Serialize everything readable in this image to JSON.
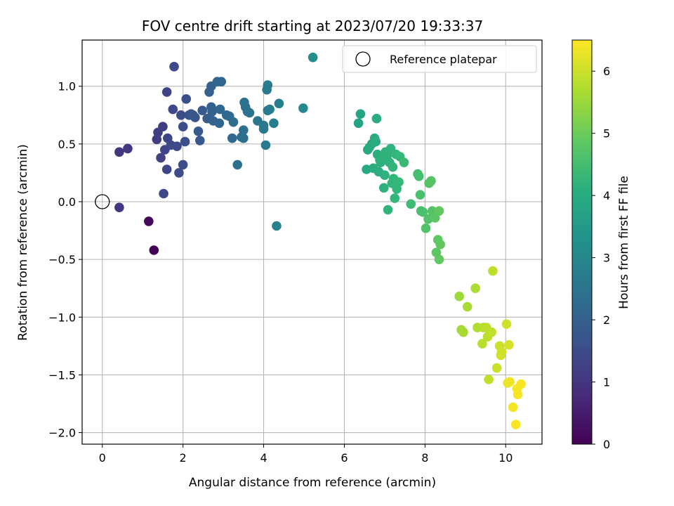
{
  "chart_data": {
    "type": "scatter",
    "title": "FOV centre drift starting at 2023/07/20 19:33:37",
    "xlabel": "Angular distance from reference (arcmin)",
    "ylabel": "Rotation from reference (arcmin)",
    "xlim": [
      -0.5,
      10.9
    ],
    "ylim": [
      -2.1,
      1.4
    ],
    "xticks": [
      "0",
      "2",
      "4",
      "6",
      "8",
      "10"
    ],
    "yticks": [
      "−2.0",
      "−1.5",
      "−1.0",
      "−0.5",
      "0.0",
      "0.5",
      "1.0"
    ],
    "grid": true,
    "colormap": "viridis",
    "colorbar": {
      "label": "Hours from first FF file",
      "range": [
        0,
        6.5
      ],
      "ticks": [
        "0",
        "1",
        "2",
        "3",
        "4",
        "5",
        "6"
      ]
    },
    "legend": {
      "position": "top-right",
      "entries": [
        "Reference platepar"
      ]
    },
    "reference_point": {
      "x": 0,
      "y": 0
    },
    "points": [
      [
        1.15,
        -0.17,
        0.15
      ],
      [
        1.28,
        -0.42,
        0.05
      ],
      [
        0.42,
        -0.05,
        1.05
      ],
      [
        0.42,
        0.43,
        1.0
      ],
      [
        0.63,
        0.46,
        1.05
      ],
      [
        1.35,
        0.54,
        1.15
      ],
      [
        1.38,
        0.6,
        1.2
      ],
      [
        1.45,
        0.38,
        1.25
      ],
      [
        1.5,
        0.65,
        1.2
      ],
      [
        1.52,
        0.07,
        1.35
      ],
      [
        1.55,
        0.45,
        1.3
      ],
      [
        1.6,
        0.28,
        1.35
      ],
      [
        1.6,
        0.95,
        1.3
      ],
      [
        1.62,
        0.55,
        1.35
      ],
      [
        1.7,
        0.49,
        1.4
      ],
      [
        1.75,
        0.8,
        1.4
      ],
      [
        1.78,
        1.17,
        1.45
      ],
      [
        1.85,
        0.48,
        1.45
      ],
      [
        1.9,
        0.25,
        1.5
      ],
      [
        1.95,
        0.75,
        1.5
      ],
      [
        2.0,
        0.65,
        1.55
      ],
      [
        2.0,
        0.32,
        1.55
      ],
      [
        2.05,
        0.52,
        1.6
      ],
      [
        2.08,
        0.89,
        1.6
      ],
      [
        2.15,
        0.75,
        1.65
      ],
      [
        2.2,
        0.76,
        1.7
      ],
      [
        2.25,
        0.75,
        1.75
      ],
      [
        2.3,
        0.73,
        1.75
      ],
      [
        2.38,
        0.61,
        1.8
      ],
      [
        2.42,
        0.53,
        1.8
      ],
      [
        2.48,
        0.79,
        1.85
      ],
      [
        2.6,
        0.72,
        1.9
      ],
      [
        2.65,
        0.95,
        1.95
      ],
      [
        2.7,
        1.0,
        2.0
      ],
      [
        2.7,
        0.82,
        2.0
      ],
      [
        2.72,
        0.78,
        2.0
      ],
      [
        2.75,
        0.7,
        2.05
      ],
      [
        2.85,
        1.04,
        2.1
      ],
      [
        2.9,
        0.68,
        2.1
      ],
      [
        2.92,
        0.8,
        2.15
      ],
      [
        2.95,
        1.04,
        2.15
      ],
      [
        3.08,
        0.75,
        2.2
      ],
      [
        3.15,
        0.74,
        2.25
      ],
      [
        3.22,
        0.55,
        2.25
      ],
      [
        3.25,
        0.69,
        2.3
      ],
      [
        3.35,
        0.32,
        2.35
      ],
      [
        3.45,
        0.56,
        2.35
      ],
      [
        3.5,
        0.55,
        2.4
      ],
      [
        3.5,
        0.62,
        2.4
      ],
      [
        3.52,
        0.86,
        2.45
      ],
      [
        3.55,
        0.82,
        2.45
      ],
      [
        3.6,
        0.78,
        2.5
      ],
      [
        3.65,
        0.77,
        2.5
      ],
      [
        3.85,
        0.7,
        2.55
      ],
      [
        4.0,
        0.66,
        2.6
      ],
      [
        4.0,
        0.63,
        2.6
      ],
      [
        4.05,
        0.49,
        2.65
      ],
      [
        4.08,
        0.97,
        2.65
      ],
      [
        4.1,
        1.01,
        2.7
      ],
      [
        4.1,
        0.79,
        2.7
      ],
      [
        4.15,
        0.8,
        2.7
      ],
      [
        4.25,
        0.68,
        2.75
      ],
      [
        4.32,
        -0.21,
        2.85
      ],
      [
        4.38,
        0.85,
        2.8
      ],
      [
        4.98,
        0.81,
        3.05
      ],
      [
        5.22,
        1.25,
        3.2
      ],
      [
        6.35,
        0.68,
        3.75
      ],
      [
        6.4,
        0.76,
        3.8
      ],
      [
        6.55,
        0.28,
        3.9
      ],
      [
        6.58,
        0.45,
        3.9
      ],
      [
        6.62,
        0.47,
        3.95
      ],
      [
        6.68,
        0.5,
        3.95
      ],
      [
        6.72,
        0.29,
        4.0
      ],
      [
        6.75,
        0.55,
        4.0
      ],
      [
        6.78,
        0.52,
        4.0
      ],
      [
        6.8,
        0.72,
        4.05
      ],
      [
        6.82,
        0.41,
        4.05
      ],
      [
        6.85,
        0.26,
        4.05
      ],
      [
        6.88,
        0.36,
        4.1
      ],
      [
        6.9,
        0.34,
        4.1
      ],
      [
        6.95,
        0.4,
        4.1
      ],
      [
        6.98,
        0.12,
        4.1
      ],
      [
        7.0,
        0.23,
        4.15
      ],
      [
        7.02,
        0.43,
        4.15
      ],
      [
        7.05,
        0.38,
        4.15
      ],
      [
        7.08,
        -0.07,
        4.25
      ],
      [
        7.1,
        0.42,
        4.2
      ],
      [
        7.12,
        0.34,
        4.2
      ],
      [
        7.15,
        0.46,
        4.2
      ],
      [
        7.18,
        0.16,
        4.25
      ],
      [
        7.2,
        0.3,
        4.25
      ],
      [
        7.22,
        0.2,
        4.3
      ],
      [
        7.25,
        0.03,
        4.3
      ],
      [
        7.28,
        0.41,
        4.3
      ],
      [
        7.3,
        0.11,
        4.3
      ],
      [
        7.35,
        0.17,
        4.35
      ],
      [
        7.38,
        0.39,
        4.35
      ],
      [
        7.48,
        0.34,
        4.4
      ],
      [
        7.65,
        -0.02,
        4.45
      ],
      [
        7.82,
        0.24,
        4.55
      ],
      [
        7.85,
        0.22,
        4.55
      ],
      [
        7.88,
        0.06,
        4.6
      ],
      [
        7.9,
        -0.08,
        4.6
      ],
      [
        7.95,
        -0.09,
        4.6
      ],
      [
        8.02,
        -0.23,
        4.7
      ],
      [
        8.08,
        -0.15,
        4.7
      ],
      [
        8.1,
        0.16,
        4.75
      ],
      [
        8.15,
        0.18,
        4.75
      ],
      [
        8.18,
        -0.08,
        4.75
      ],
      [
        8.25,
        -0.14,
        4.8
      ],
      [
        8.28,
        -0.44,
        4.85
      ],
      [
        8.32,
        -0.33,
        4.85
      ],
      [
        8.35,
        -0.08,
        4.9
      ],
      [
        8.35,
        -0.5,
        4.9
      ],
      [
        8.38,
        -0.37,
        4.9
      ],
      [
        8.85,
        -0.82,
        5.55
      ],
      [
        8.9,
        -1.11,
        5.6
      ],
      [
        8.95,
        -1.13,
        5.65
      ],
      [
        9.05,
        -0.91,
        5.65
      ],
      [
        9.25,
        -0.75,
        5.7
      ],
      [
        9.3,
        -1.09,
        5.75
      ],
      [
        9.42,
        -1.23,
        5.8
      ],
      [
        9.45,
        -1.09,
        5.8
      ],
      [
        9.52,
        -1.09,
        5.85
      ],
      [
        9.55,
        -1.17,
        5.85
      ],
      [
        9.58,
        -1.54,
        5.9
      ],
      [
        9.65,
        -1.13,
        5.9
      ],
      [
        9.68,
        -0.6,
        5.85
      ],
      [
        9.78,
        -1.44,
        6.0
      ],
      [
        9.85,
        -1.25,
        6.0
      ],
      [
        9.88,
        -1.33,
        6.05
      ],
      [
        9.9,
        -1.3,
        6.05
      ],
      [
        10.02,
        -1.06,
        6.05
      ],
      [
        10.05,
        -1.57,
        6.3
      ],
      [
        10.08,
        -1.24,
        6.1
      ],
      [
        10.1,
        -1.56,
        6.35
      ],
      [
        10.18,
        -1.78,
        6.4
      ],
      [
        10.25,
        -1.93,
        6.45
      ],
      [
        10.28,
        -1.62,
        6.4
      ],
      [
        10.3,
        -1.67,
        6.45
      ],
      [
        10.38,
        -1.58,
        6.45
      ]
    ]
  }
}
